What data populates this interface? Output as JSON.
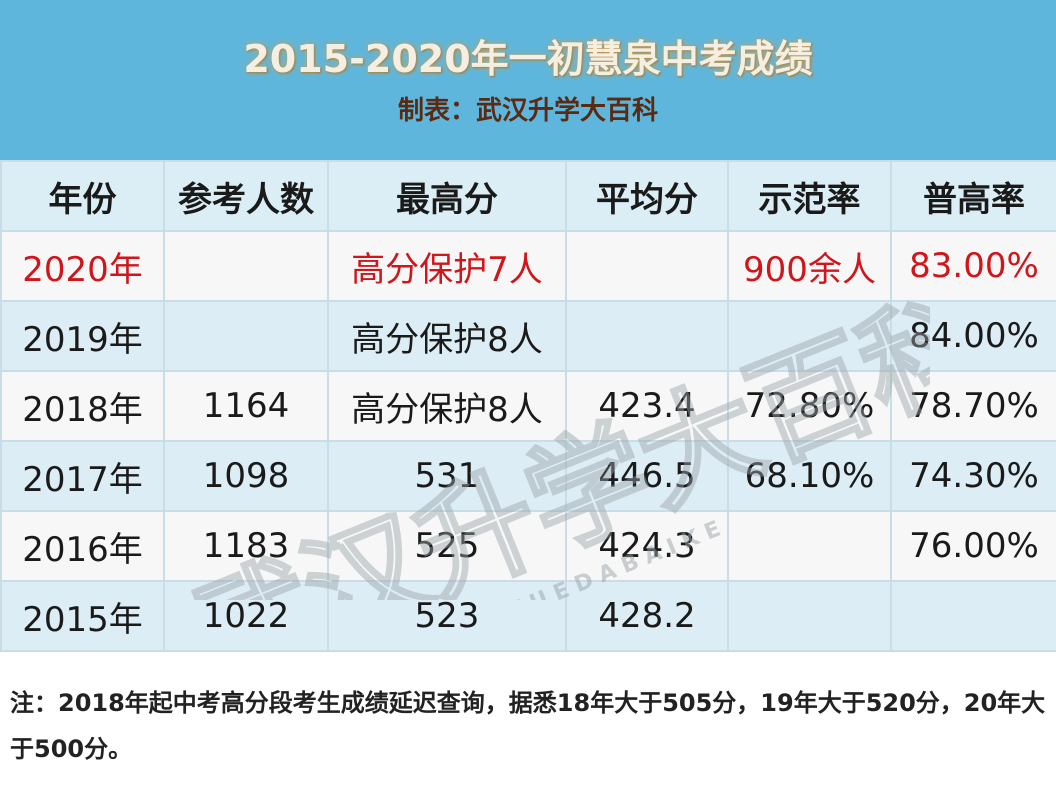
{
  "header": {
    "title": "2015-2020年一初慧泉中考成绩",
    "subtitle": "制表：武汉升学大百科"
  },
  "table": {
    "columns": [
      "年份",
      "参考人数",
      "最高分",
      "平均分",
      "示范率",
      "普高率"
    ],
    "rows": [
      [
        "2020年",
        null,
        "高分保护7人",
        null,
        "900余人",
        "83.00%"
      ],
      [
        "2019年",
        null,
        "高分保护8人",
        null,
        null,
        "84.00%"
      ],
      [
        "2018年",
        "1164",
        "高分保护8人",
        "423.4",
        "72.80%",
        "78.70%"
      ],
      [
        "2017年",
        "1098",
        "531",
        "446.5",
        "68.10%",
        "74.30%"
      ],
      [
        "2016年",
        "1183",
        "525",
        "424.3",
        null,
        "76.00%"
      ],
      [
        "2015年",
        "1022",
        "523",
        "428.2",
        null,
        null
      ]
    ],
    "highlight_row": 0,
    "highlight_color": "#d0161b"
  },
  "note": "注：2018年起中考高分段考生成绩延迟查询，据悉18年大于505分，19年大于520分，20年大于500分。",
  "watermark": {
    "text": "武汉升学大百科",
    "letters": "W U H A N S H E N G X U E D A B A I K E"
  }
}
